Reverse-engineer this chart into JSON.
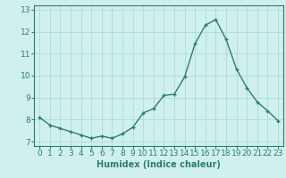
{
  "x": [
    0,
    1,
    2,
    3,
    4,
    5,
    6,
    7,
    8,
    9,
    10,
    11,
    12,
    13,
    14,
    15,
    16,
    17,
    18,
    19,
    20,
    21,
    22,
    23
  ],
  "y": [
    8.1,
    7.75,
    7.6,
    7.45,
    7.3,
    7.15,
    7.25,
    7.15,
    7.35,
    7.65,
    8.3,
    8.5,
    9.1,
    9.15,
    9.95,
    11.45,
    12.3,
    12.55,
    11.65,
    10.3,
    9.45,
    8.8,
    8.4,
    7.95
  ],
  "line_color": "#2e7d6e",
  "marker": "+",
  "marker_size": 3,
  "line_width": 1.0,
  "bg_color": "#cff0ec",
  "grid_color": "#a8d8d0",
  "xlabel": "Humidex (Indice chaleur)",
  "xlabel_fontsize": 7,
  "tick_fontsize": 6.5,
  "ylim": [
    6.8,
    13.2
  ],
  "yticks": [
    7,
    8,
    9,
    10,
    11,
    12,
    13
  ],
  "xticks": [
    0,
    1,
    2,
    3,
    4,
    5,
    6,
    7,
    8,
    9,
    10,
    11,
    12,
    13,
    14,
    15,
    16,
    17,
    18,
    19,
    20,
    21,
    22,
    23
  ],
  "xtick_labels": [
    "0",
    "1",
    "2",
    "3",
    "4",
    "5",
    "6",
    "7",
    "8",
    "9",
    "10",
    "11",
    "12",
    "13",
    "14",
    "15",
    "16",
    "17",
    "18",
    "19",
    "20",
    "21",
    "22",
    "23"
  ]
}
